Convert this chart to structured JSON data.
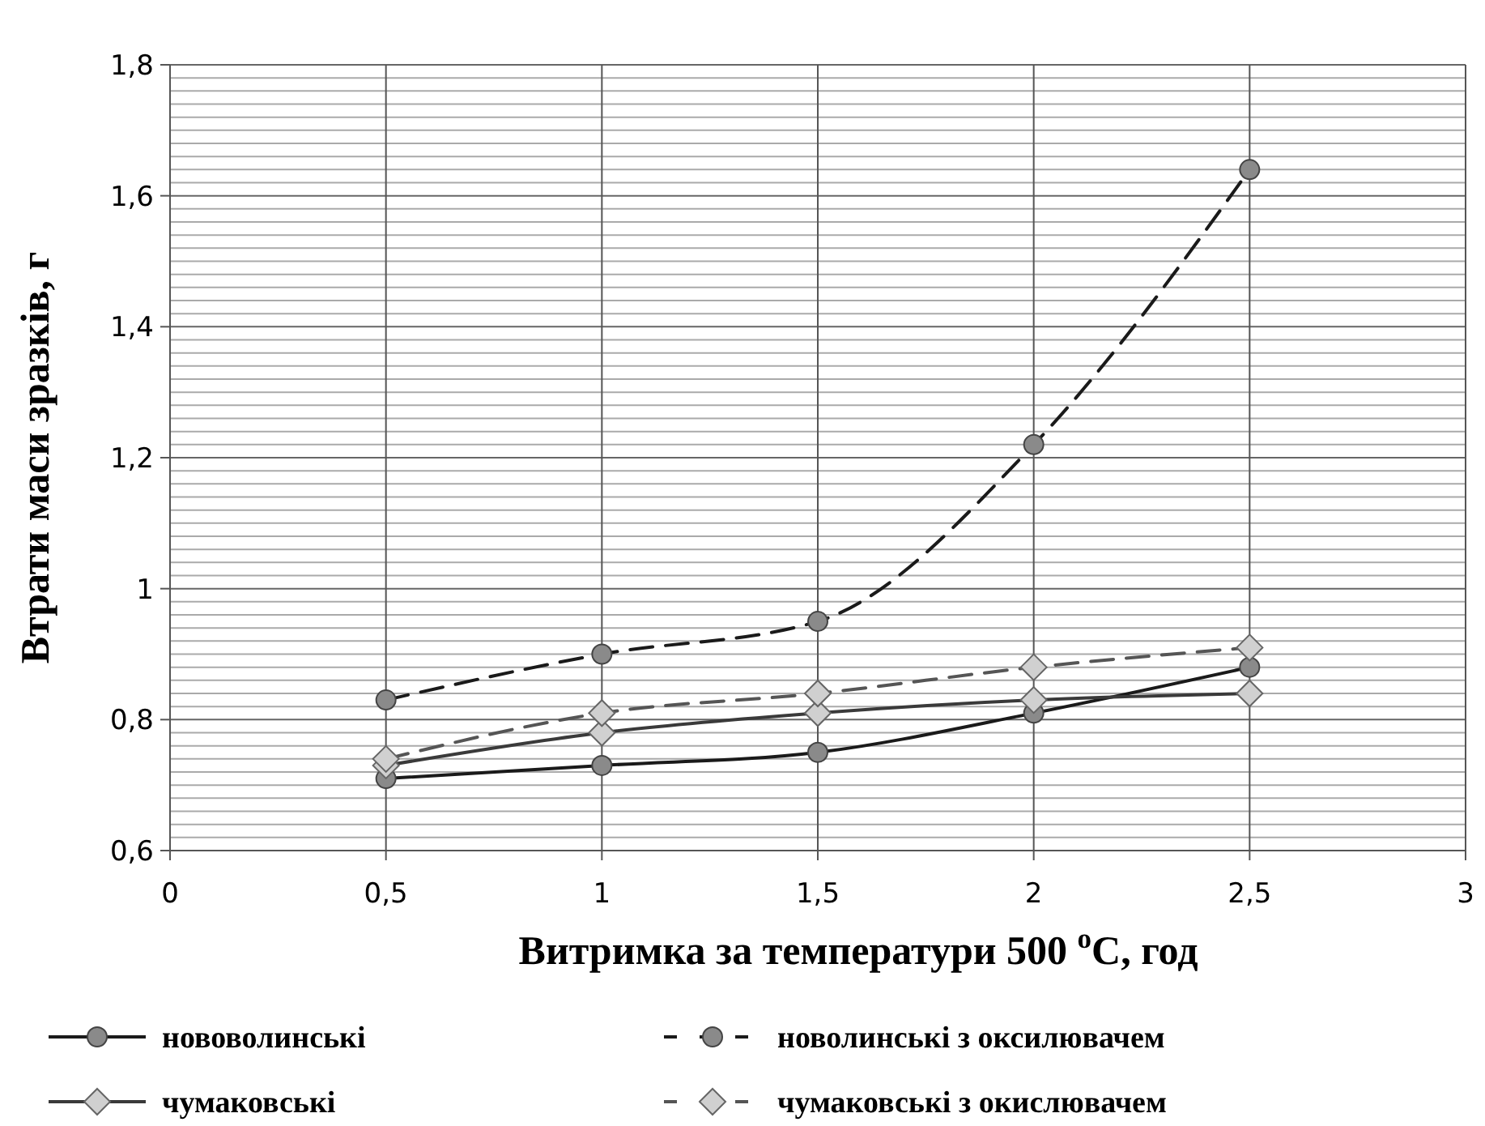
{
  "chart_data": {
    "type": "line",
    "xlabel": "Витримка за температури 500 $^{o}$C, год",
    "ylabel": "Втрати маси зразків, г",
    "x": [
      0.5,
      1,
      1.5,
      2,
      2.5
    ],
    "xlim": [
      0,
      3
    ],
    "xticks": [
      {
        "value": 0,
        "label": "0"
      },
      {
        "value": 0.5,
        "label": "0,5"
      },
      {
        "value": 1,
        "label": "1"
      },
      {
        "value": 1.5,
        "label": "1,5"
      },
      {
        "value": 2,
        "label": "2"
      },
      {
        "value": 2.5,
        "label": "2,5"
      },
      {
        "value": 3,
        "label": "3"
      }
    ],
    "ylim": [
      0.6,
      1.8
    ],
    "yticks": [
      {
        "value": 0.6,
        "label": "0,6"
      },
      {
        "value": 0.8,
        "label": "0,8"
      },
      {
        "value": 1,
        "label": "1"
      },
      {
        "value": 1.2,
        "label": "1,2"
      },
      {
        "value": 1.4,
        "label": "1,4"
      },
      {
        "value": 1.6,
        "label": "1,6"
      },
      {
        "value": 1.8,
        "label": "1,8"
      }
    ],
    "grid": true,
    "legend": "bottom",
    "series": [
      {
        "name": "нововолинські",
        "color": "#1a1a1a",
        "marker": "circle",
        "line_style": "solid",
        "values": [
          0.71,
          0.73,
          0.75,
          0.81,
          0.88
        ]
      },
      {
        "name": "новолинські з оксилювачем",
        "color": "#1a1a1a",
        "marker": "circle",
        "line_style": "dashed",
        "values": [
          0.83,
          0.9,
          0.95,
          1.22,
          1.64
        ]
      },
      {
        "name": "чумаковські",
        "color": "#3a3a3a",
        "marker": "diamond",
        "line_style": "solid",
        "values": [
          0.73,
          0.78,
          0.81,
          0.83,
          0.84
        ]
      },
      {
        "name": "чумаковські з окислювачем",
        "color": "#555555",
        "marker": "diamond",
        "line_style": "dashed",
        "values": [
          0.74,
          0.81,
          0.84,
          0.88,
          0.91
        ]
      }
    ]
  }
}
